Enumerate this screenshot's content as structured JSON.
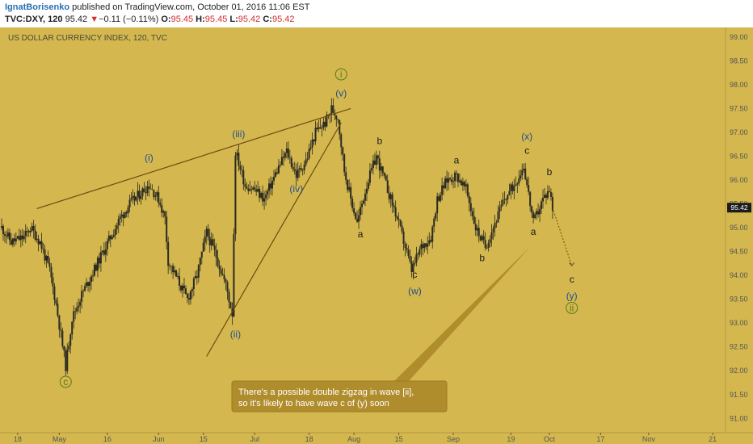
{
  "header": {
    "author": "IgnatBorisenko",
    "published_text": "published on TradingView.com, October 01, 2016 11:06 EST",
    "symbol": "TVC:DXY, 120",
    "last": "95.42",
    "change": "−0.11 (−0.11%)",
    "open_label": "O:",
    "open": "95.45",
    "high_label": "H:",
    "high": "95.45",
    "low_label": "L:",
    "low": "95.42",
    "close_label": "C:",
    "close": "95.42"
  },
  "colors": {
    "background": "#d4b74e",
    "candle": "#2b2b22",
    "trendline": "#6e4a12",
    "blue_label": "#1f4e8c",
    "green_label": "#5a7a1e",
    "callout_bg": "#b08d2c",
    "price_badge": "#1c1c1c",
    "red": "#d32f2f"
  },
  "chart_data": {
    "type": "candlestick",
    "title": "US DOLLAR CURRENCY INDEX, 120, TVC",
    "last_price": "95.42",
    "ylim": [
      90.7,
      99.2
    ],
    "y_ticks": [
      "99.00",
      "98.50",
      "98.00",
      "97.50",
      "97.00",
      "96.50",
      "96.00",
      "95.50",
      "95.00",
      "94.50",
      "94.00",
      "93.50",
      "93.00",
      "92.50",
      "92.00",
      "91.50",
      "91.00"
    ],
    "x_ticks": [
      "18",
      "May",
      "16",
      "Jun",
      "15",
      "Jul",
      "18",
      "Aug",
      "15",
      "Sep",
      "19",
      "Oct",
      "17",
      "Nov",
      "21"
    ],
    "x_range": [
      "2016-04-13",
      "2016-11-25"
    ],
    "x_tick_dates": [
      "2016-04-18",
      "2016-05-01",
      "2016-05-16",
      "2016-06-01",
      "2016-06-15",
      "2016-07-01",
      "2016-07-18",
      "2016-08-01",
      "2016-08-15",
      "2016-09-01",
      "2016-09-19",
      "2016-10-01",
      "2016-10-17",
      "2016-11-01",
      "2016-11-21"
    ],
    "price_path": [
      [
        "2016-04-13",
        95.0
      ],
      [
        "2016-04-16",
        94.7
      ],
      [
        "2016-04-20",
        94.8
      ],
      [
        "2016-04-22",
        95.0
      ],
      [
        "2016-04-25",
        94.7
      ],
      [
        "2016-04-28",
        94.1
      ],
      [
        "2016-04-30",
        93.4
      ],
      [
        "2016-05-03",
        92.1
      ],
      [
        "2016-05-05",
        93.1
      ],
      [
        "2016-05-08",
        93.6
      ],
      [
        "2016-05-11",
        94.0
      ],
      [
        "2016-05-14",
        94.4
      ],
      [
        "2016-05-17",
        94.8
      ],
      [
        "2016-05-20",
        95.2
      ],
      [
        "2016-05-23",
        95.5
      ],
      [
        "2016-05-26",
        95.7
      ],
      [
        "2016-05-29",
        95.9
      ],
      [
        "2016-06-01",
        95.6
      ],
      [
        "2016-06-03",
        95.2
      ],
      [
        "2016-06-04",
        94.3
      ],
      [
        "2016-06-07",
        93.9
      ],
      [
        "2016-06-10",
        93.5
      ],
      [
        "2016-06-13",
        94.0
      ],
      [
        "2016-06-16",
        94.9
      ],
      [
        "2016-06-19",
        94.4
      ],
      [
        "2016-06-22",
        93.8
      ],
      [
        "2016-06-24",
        93.2
      ],
      [
        "2016-06-25",
        96.6
      ],
      [
        "2016-06-28",
        95.9
      ],
      [
        "2016-07-01",
        95.8
      ],
      [
        "2016-07-04",
        95.6
      ],
      [
        "2016-07-08",
        96.2
      ],
      [
        "2016-07-11",
        96.6
      ],
      [
        "2016-07-14",
        96.1
      ],
      [
        "2016-07-17",
        96.4
      ],
      [
        "2016-07-20",
        97.0
      ],
      [
        "2016-07-23",
        97.2
      ],
      [
        "2016-07-25",
        97.5
      ],
      [
        "2016-07-27",
        97.3
      ],
      [
        "2016-07-29",
        96.2
      ],
      [
        "2016-07-31",
        95.6
      ],
      [
        "2016-08-02",
        95.1
      ],
      [
        "2016-08-05",
        95.9
      ],
      [
        "2016-08-08",
        96.5
      ],
      [
        "2016-08-11",
        95.9
      ],
      [
        "2016-08-14",
        95.3
      ],
      [
        "2016-08-17",
        94.6
      ],
      [
        "2016-08-19",
        94.1
      ],
      [
        "2016-08-22",
        94.6
      ],
      [
        "2016-08-25",
        94.8
      ],
      [
        "2016-08-27",
        95.6
      ],
      [
        "2016-08-30",
        96.0
      ],
      [
        "2016-09-02",
        96.1
      ],
      [
        "2016-09-05",
        95.8
      ],
      [
        "2016-09-08",
        95.0
      ],
      [
        "2016-09-11",
        94.6
      ],
      [
        "2016-09-14",
        95.1
      ],
      [
        "2016-09-17",
        95.6
      ],
      [
        "2016-09-20",
        95.9
      ],
      [
        "2016-09-23",
        96.3
      ],
      [
        "2016-09-26",
        95.1
      ],
      [
        "2016-09-29",
        95.6
      ],
      [
        "2016-10-01",
        95.8
      ],
      [
        "2016-10-02",
        95.42
      ]
    ],
    "trendlines": [
      {
        "from": [
          "2016-04-24",
          95.4
        ],
        "to": [
          "2016-07-31",
          97.5
        ]
      },
      {
        "from": [
          "2016-06-16",
          92.3
        ],
        "to": [
          "2016-07-28",
          97.2
        ]
      }
    ],
    "projection": {
      "from": [
        "2016-10-02",
        95.42
      ],
      "to": [
        "2016-10-08",
        94.2
      ]
    },
    "callout_anchor": [
      "2016-09-25",
      94.6
    ],
    "wave_labels": [
      {
        "text": "c",
        "date": "2016-05-03",
        "price": 91.7,
        "style": "circle-green"
      },
      {
        "text": "(i)",
        "date": "2016-05-29",
        "price": 96.4,
        "style": "blue"
      },
      {
        "text": "(ii)",
        "date": "2016-06-25",
        "price": 92.7,
        "style": "blue"
      },
      {
        "text": "(iii)",
        "date": "2016-06-26",
        "price": 96.9,
        "style": "blue"
      },
      {
        "text": "(iv)",
        "date": "2016-07-14",
        "price": 95.75,
        "style": "blue"
      },
      {
        "text": "(v)",
        "date": "2016-07-28",
        "price": 97.75,
        "style": "blue"
      },
      {
        "text": "i",
        "date": "2016-07-28",
        "price": 98.15,
        "style": "circle-green"
      },
      {
        "text": "a",
        "date": "2016-08-03",
        "price": 94.8,
        "style": "black"
      },
      {
        "text": "b",
        "date": "2016-08-09",
        "price": 96.75,
        "style": "black"
      },
      {
        "text": "c",
        "date": "2016-08-20",
        "price": 93.95,
        "style": "black"
      },
      {
        "text": "(w)",
        "date": "2016-08-20",
        "price": 93.6,
        "style": "blue"
      },
      {
        "text": "a",
        "date": "2016-09-02",
        "price": 96.35,
        "style": "black"
      },
      {
        "text": "b",
        "date": "2016-09-10",
        "price": 94.3,
        "style": "black"
      },
      {
        "text": "a",
        "date": "2016-09-26",
        "price": 94.85,
        "style": "black"
      },
      {
        "text": "c",
        "date": "2016-09-24",
        "price": 96.55,
        "style": "black"
      },
      {
        "text": "(x)",
        "date": "2016-09-24",
        "price": 96.85,
        "style": "blue"
      },
      {
        "text": "b",
        "date": "2016-10-01",
        "price": 96.1,
        "style": "black"
      },
      {
        "text": "c",
        "date": "2016-10-08",
        "price": 93.85,
        "style": "black"
      },
      {
        "text": "(y)",
        "date": "2016-10-08",
        "price": 93.5,
        "style": "blue"
      },
      {
        "text": "ii",
        "date": "2016-10-08",
        "price": 93.25,
        "style": "circle-green"
      }
    ],
    "annotation": {
      "text_line1": "There's a possible double zigzag in wave [ii],",
      "text_line2": "so it's likely to have wave c of (y) soon"
    }
  }
}
